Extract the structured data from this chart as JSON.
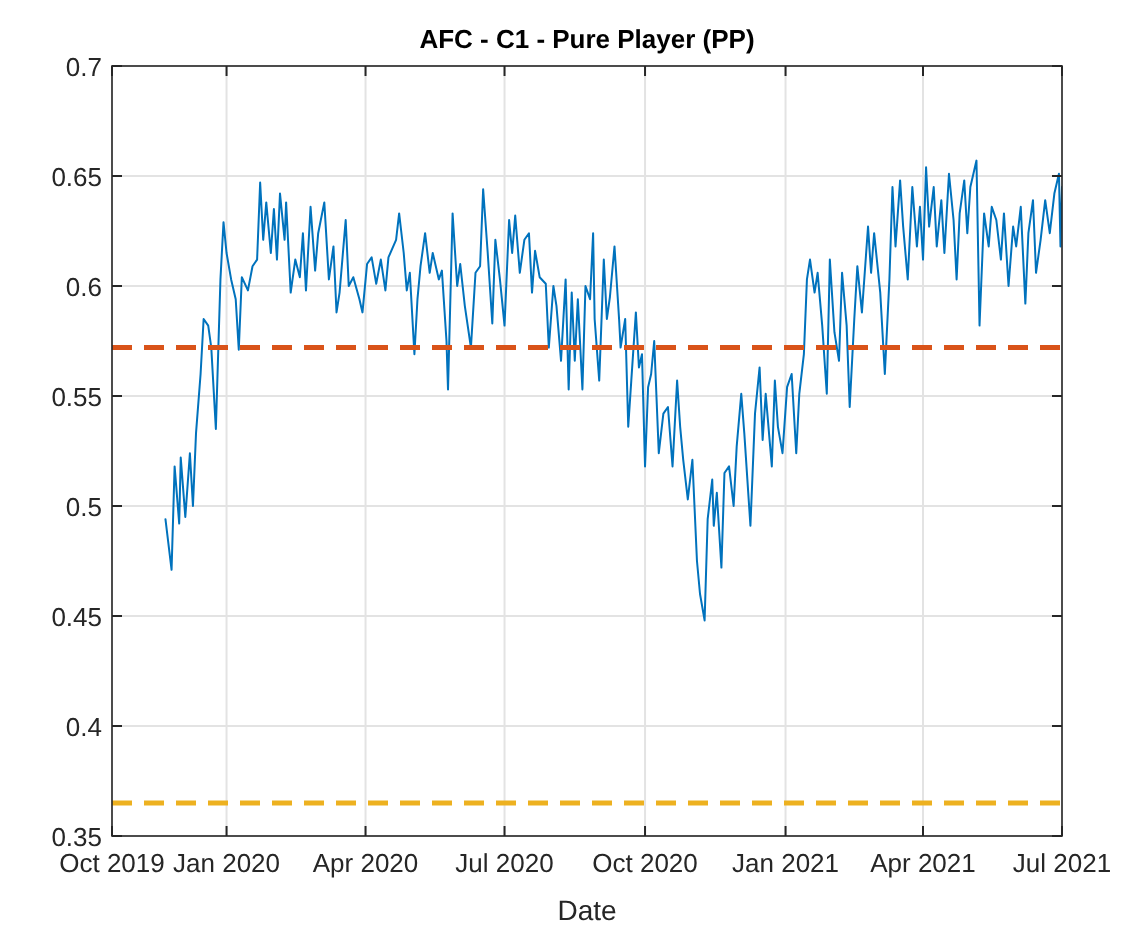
{
  "chart_data": {
    "type": "line",
    "title": "AFC - C1 - Pure Player (PP)",
    "xlabel": "Date",
    "xlim": [
      "2019-10-18",
      "2021-07-01"
    ],
    "xticks": [
      {
        "value": "2019-10-18",
        "label": "Oct 2019"
      },
      {
        "value": "2020-01-01",
        "label": "Jan 2020"
      },
      {
        "value": "2020-04-01",
        "label": "Apr 2020"
      },
      {
        "value": "2020-07-01",
        "label": "Jul 2020"
      },
      {
        "value": "2020-10-01",
        "label": "Oct 2020"
      },
      {
        "value": "2021-01-01",
        "label": "Jan 2021"
      },
      {
        "value": "2021-04-01",
        "label": "Apr 2021"
      },
      {
        "value": "2021-07-01",
        "label": "Jul 2021"
      }
    ],
    "ylim": [
      0.35,
      0.7
    ],
    "yticks": [
      0.35,
      0.4,
      0.45,
      0.5,
      0.55,
      0.6,
      0.65,
      0.7
    ],
    "grid": true,
    "line_style": "solid",
    "marker": "none",
    "ref_lines": [
      {
        "axis": "y",
        "value": 0.572,
        "color": "#d95319",
        "line_style": "dashed"
      },
      {
        "axis": "y",
        "value": 0.365,
        "color": "#edb120",
        "line_style": "dashed"
      }
    ],
    "series": [
      {
        "color": "#0072bd",
        "x": [
          "2019-11-22",
          "2019-11-26",
          "2019-11-28",
          "2019-12-01",
          "2019-12-02",
          "2019-12-05",
          "2019-12-08",
          "2019-12-10",
          "2019-12-12",
          "2019-12-15",
          "2019-12-17",
          "2019-12-20",
          "2019-12-22",
          "2019-12-25",
          "2019-12-28",
          "2019-12-30",
          "2020-01-01",
          "2020-01-04",
          "2020-01-07",
          "2020-01-09",
          "2020-01-11",
          "2020-01-15",
          "2020-01-18",
          "2020-01-21",
          "2020-01-23",
          "2020-01-25",
          "2020-01-27",
          "2020-01-30",
          "2020-02-01",
          "2020-02-03",
          "2020-02-05",
          "2020-02-08",
          "2020-02-09",
          "2020-02-12",
          "2020-02-15",
          "2020-02-18",
          "2020-02-20",
          "2020-02-22",
          "2020-02-25",
          "2020-02-28",
          "2020-03-01",
          "2020-03-05",
          "2020-03-08",
          "2020-03-11",
          "2020-03-13",
          "2020-03-15",
          "2020-03-19",
          "2020-03-21",
          "2020-03-24",
          "2020-03-28",
          "2020-03-30",
          "2020-04-02",
          "2020-04-05",
          "2020-04-08",
          "2020-04-11",
          "2020-04-14",
          "2020-04-16",
          "2020-04-21",
          "2020-04-23",
          "2020-04-26",
          "2020-04-28",
          "2020-04-30",
          "2020-05-03",
          "2020-05-05",
          "2020-05-07",
          "2020-05-10",
          "2020-05-13",
          "2020-05-15",
          "2020-05-19",
          "2020-05-21",
          "2020-05-24",
          "2020-05-25",
          "2020-05-28",
          "2020-05-31",
          "2020-06-02",
          "2020-06-05",
          "2020-06-09",
          "2020-06-12",
          "2020-06-15",
          "2020-06-17",
          "2020-06-20",
          "2020-06-23",
          "2020-06-25",
          "2020-06-28",
          "2020-07-01",
          "2020-07-04",
          "2020-07-06",
          "2020-07-08",
          "2020-07-11",
          "2020-07-14",
          "2020-07-17",
          "2020-07-19",
          "2020-07-21",
          "2020-07-24",
          "2020-07-28",
          "2020-07-30",
          "2020-08-02",
          "2020-08-04",
          "2020-08-07",
          "2020-08-10",
          "2020-08-12",
          "2020-08-14",
          "2020-08-16",
          "2020-08-18",
          "2020-08-21",
          "2020-08-23",
          "2020-08-26",
          "2020-08-28",
          "2020-08-29",
          "2020-09-01",
          "2020-09-04",
          "2020-09-06",
          "2020-09-08",
          "2020-09-11",
          "2020-09-14",
          "2020-09-15",
          "2020-09-18",
          "2020-09-20",
          "2020-09-22",
          "2020-09-25",
          "2020-09-27",
          "2020-09-29",
          "2020-10-01",
          "2020-10-03",
          "2020-10-05",
          "2020-10-07",
          "2020-10-10",
          "2020-10-13",
          "2020-10-16",
          "2020-10-19",
          "2020-10-22",
          "2020-10-24",
          "2020-10-26",
          "2020-10-29",
          "2020-11-01",
          "2020-11-04",
          "2020-11-06",
          "2020-11-09",
          "2020-11-11",
          "2020-11-14",
          "2020-11-15",
          "2020-11-17",
          "2020-11-20",
          "2020-11-22",
          "2020-11-25",
          "2020-11-28",
          "2020-11-30",
          "2020-12-03",
          "2020-12-05",
          "2020-12-09",
          "2020-12-12",
          "2020-12-15",
          "2020-12-17",
          "2020-12-19",
          "2020-12-23",
          "2020-12-25",
          "2020-12-27",
          "2020-12-30",
          "2021-01-02",
          "2021-01-05",
          "2021-01-08",
          "2021-01-10",
          "2021-01-13",
          "2021-01-15",
          "2021-01-17",
          "2021-01-20",
          "2021-01-22",
          "2021-01-25",
          "2021-01-28",
          "2021-01-30",
          "2021-02-02",
          "2021-02-05",
          "2021-02-07",
          "2021-02-10",
          "2021-02-12",
          "2021-02-15",
          "2021-02-17",
          "2021-02-20",
          "2021-02-24",
          "2021-02-26",
          "2021-02-28",
          "2021-03-04",
          "2021-03-07",
          "2021-03-10",
          "2021-03-12",
          "2021-03-14",
          "2021-03-17",
          "2021-03-19",
          "2021-03-22",
          "2021-03-25",
          "2021-03-28",
          "2021-03-30",
          "2021-04-01",
          "2021-04-03",
          "2021-04-05",
          "2021-04-08",
          "2021-04-10",
          "2021-04-13",
          "2021-04-15",
          "2021-04-18",
          "2021-04-21",
          "2021-04-23",
          "2021-04-25",
          "2021-04-28",
          "2021-04-30",
          "2021-05-02",
          "2021-05-04",
          "2021-05-06",
          "2021-05-08",
          "2021-05-11",
          "2021-05-14",
          "2021-05-16",
          "2021-05-19",
          "2021-05-22",
          "2021-05-24",
          "2021-05-27",
          "2021-05-30",
          "2021-06-01",
          "2021-06-04",
          "2021-06-07",
          "2021-06-09",
          "2021-06-12",
          "2021-06-14",
          "2021-06-17",
          "2021-06-20",
          "2021-06-23",
          "2021-06-26",
          "2021-06-29",
          "2021-06-30",
          "2021-07-01"
        ],
        "values": [
          0.494,
          0.471,
          0.518,
          0.492,
          0.522,
          0.495,
          0.524,
          0.5,
          0.533,
          0.56,
          0.585,
          0.582,
          0.572,
          0.535,
          0.603,
          0.629,
          0.615,
          0.603,
          0.594,
          0.571,
          0.604,
          0.598,
          0.609,
          0.612,
          0.647,
          0.621,
          0.638,
          0.615,
          0.635,
          0.612,
          0.642,
          0.621,
          0.638,
          0.597,
          0.612,
          0.604,
          0.624,
          0.598,
          0.636,
          0.607,
          0.624,
          0.638,
          0.603,
          0.618,
          0.588,
          0.597,
          0.63,
          0.6,
          0.604,
          0.594,
          0.588,
          0.61,
          0.613,
          0.601,
          0.612,
          0.598,
          0.613,
          0.621,
          0.633,
          0.615,
          0.598,
          0.606,
          0.569,
          0.594,
          0.609,
          0.624,
          0.606,
          0.615,
          0.603,
          0.607,
          0.575,
          0.553,
          0.633,
          0.6,
          0.61,
          0.591,
          0.572,
          0.606,
          0.609,
          0.644,
          0.615,
          0.583,
          0.621,
          0.603,
          0.582,
          0.63,
          0.615,
          0.632,
          0.606,
          0.621,
          0.624,
          0.597,
          0.616,
          0.604,
          0.601,
          0.572,
          0.6,
          0.591,
          0.566,
          0.603,
          0.553,
          0.597,
          0.566,
          0.594,
          0.553,
          0.6,
          0.594,
          0.624,
          0.585,
          0.557,
          0.612,
          0.585,
          0.595,
          0.618,
          0.585,
          0.572,
          0.585,
          0.536,
          0.557,
          0.588,
          0.563,
          0.569,
          0.518,
          0.554,
          0.56,
          0.575,
          0.524,
          0.542,
          0.545,
          0.518,
          0.557,
          0.536,
          0.521,
          0.503,
          0.521,
          0.475,
          0.46,
          0.448,
          0.494,
          0.512,
          0.491,
          0.506,
          0.472,
          0.515,
          0.518,
          0.5,
          0.527,
          0.551,
          0.533,
          0.491,
          0.542,
          0.563,
          0.53,
          0.551,
          0.518,
          0.557,
          0.536,
          0.524,
          0.554,
          0.56,
          0.524,
          0.551,
          0.569,
          0.603,
          0.612,
          0.597,
          0.606,
          0.582,
          0.551,
          0.612,
          0.579,
          0.566,
          0.606,
          0.582,
          0.545,
          0.585,
          0.609,
          0.588,
          0.627,
          0.606,
          0.624,
          0.597,
          0.56,
          0.603,
          0.645,
          0.618,
          0.648,
          0.627,
          0.603,
          0.645,
          0.618,
          0.636,
          0.612,
          0.654,
          0.627,
          0.645,
          0.618,
          0.639,
          0.615,
          0.651,
          0.63,
          0.603,
          0.633,
          0.648,
          0.624,
          0.645,
          0.651,
          0.657,
          0.582,
          0.633,
          0.618,
          0.636,
          0.63,
          0.612,
          0.633,
          0.6,
          0.627,
          0.618,
          0.636,
          0.592,
          0.624,
          0.639,
          0.606,
          0.621,
          0.639,
          0.624,
          0.642,
          0.651,
          0.618,
          0.645
        ]
      }
    ]
  }
}
